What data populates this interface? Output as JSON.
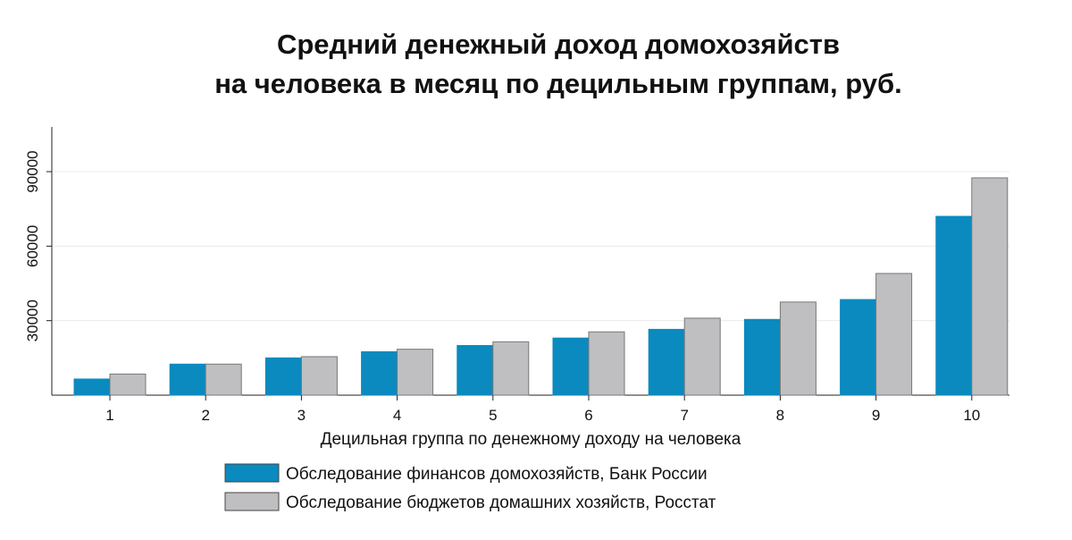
{
  "chart_data": {
    "type": "bar",
    "title_lines": [
      "Средний денежный доход домохозяйств",
      "на человека в месяц по децильным группам, руб."
    ],
    "xlabel": "Децильная группа по денежному доходу на человека",
    "ylabel": "",
    "categories": [
      "1",
      "2",
      "3",
      "4",
      "5",
      "6",
      "7",
      "8",
      "9",
      "10"
    ],
    "ylim": [
      0,
      108000
    ],
    "yticks": [
      30000,
      60000,
      90000
    ],
    "grid": true,
    "legend_position": "bottom",
    "series": [
      {
        "name": "Обследование финансов домохозяйств, Банк России",
        "color": "#0a8abf",
        "values": [
          6500,
          12500,
          15000,
          17500,
          20000,
          23000,
          26500,
          30500,
          38500,
          72000
        ]
      },
      {
        "name": "Обследование бюджетов домашних хозяйств, Росстат",
        "color": "#bfbfc1",
        "values": [
          8500,
          12500,
          15500,
          18500,
          21500,
          25500,
          31000,
          37500,
          49000,
          87500
        ]
      }
    ]
  }
}
